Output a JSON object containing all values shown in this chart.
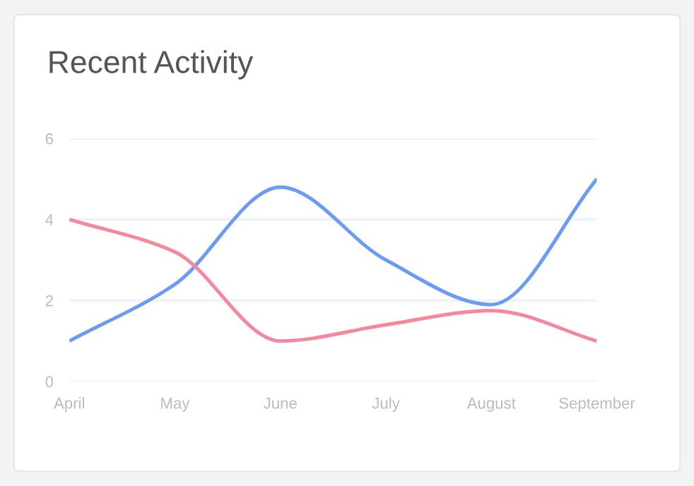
{
  "chart_data": {
    "type": "line",
    "title": "Recent Activity",
    "categories": [
      "April",
      "May",
      "June",
      "July",
      "August",
      "September"
    ],
    "series": [
      {
        "color": "#6b9cf5",
        "values": [
          1,
          2.4,
          4.8,
          3.0,
          1.9,
          5
        ]
      },
      {
        "color": "#f7879c",
        "values": [
          4,
          3.2,
          1.0,
          1.4,
          1.75,
          1
        ]
      }
    ],
    "ylim": [
      0,
      6
    ],
    "yticks": [
      0,
      2,
      4,
      6
    ],
    "grid": "y",
    "legend": false,
    "marker": "none",
    "line_style": "solid"
  }
}
